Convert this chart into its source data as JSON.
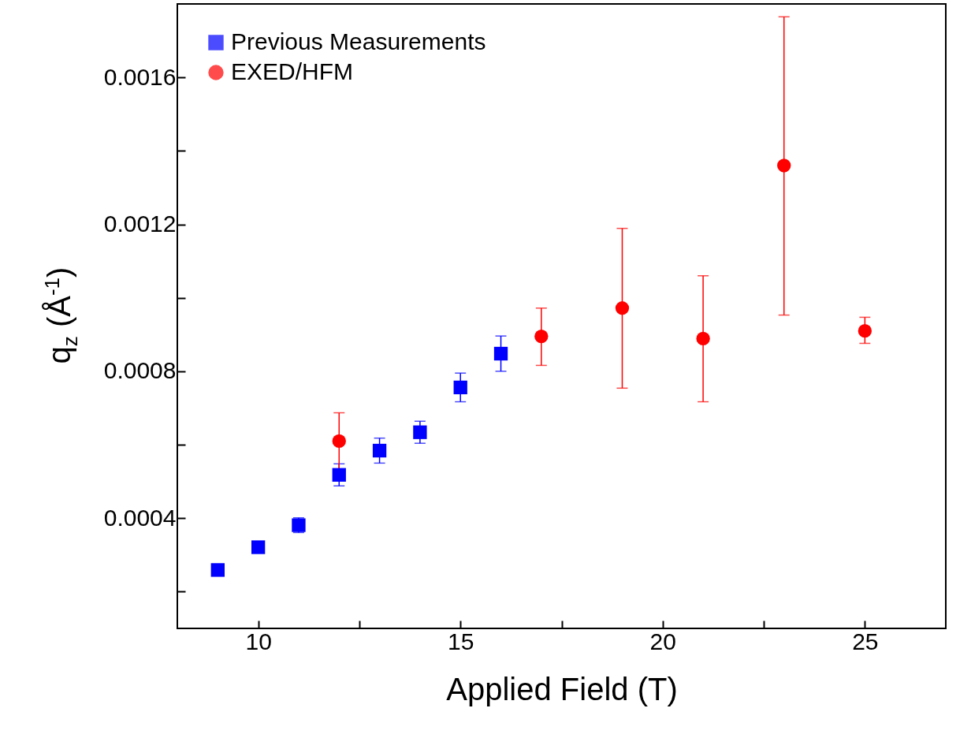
{
  "chart_data": {
    "type": "scatter",
    "xlabel": "Applied Field (T)",
    "ylabel": "q$_{z}$ (Å$^{-1}$)",
    "xlim": [
      8,
      27
    ],
    "ylim": [
      0.0001,
      0.0018
    ],
    "xticks": [
      10,
      {
        "value": 12.5,
        "label": null
      },
      15,
      {
        "value": 17.5,
        "label": null
      },
      20,
      {
        "value": 22.5,
        "label": null
      },
      25
    ],
    "yticks": [
      {
        "value": 0.0002,
        "label": null
      },
      0.0004,
      {
        "value": 0.0006,
        "label": null
      },
      0.0008,
      {
        "value": 0.001,
        "label": null
      },
      0.0012,
      {
        "value": 0.0014,
        "label": null
      },
      0.0016
    ],
    "legend": "top left",
    "grid": false,
    "series": [
      {
        "name": "Previous Measurements",
        "color": "#0000ff",
        "marker": "square",
        "x": [
          9,
          10,
          11,
          12,
          13,
          14,
          15,
          16
        ],
        "values": [
          0.000259,
          0.000321,
          0.000381,
          0.000518,
          0.000584,
          0.000634,
          0.000756,
          0.000848
        ],
        "errors": [
          null,
          null,
          2e-05,
          3e-05,
          3.4e-05,
          3e-05,
          3.9e-05,
          4.8e-05
        ]
      },
      {
        "name": "EXED/HFM",
        "color": "#ff0000",
        "marker": "circle",
        "x": [
          12,
          17,
          19,
          21,
          23,
          25
        ],
        "values": [
          0.00061,
          0.000895,
          0.000972,
          0.000889,
          0.00136,
          0.00091
        ],
        "errors": [
          [
            0.000533,
            0.000687
          ],
          [
            0.000816,
            0.000972
          ],
          [
            0.000754,
            0.001189
          ],
          [
            0.000717,
            0.00106
          ],
          [
            0.000953,
            0.001765
          ],
          [
            0.000876,
            0.000947
          ]
        ]
      }
    ]
  }
}
